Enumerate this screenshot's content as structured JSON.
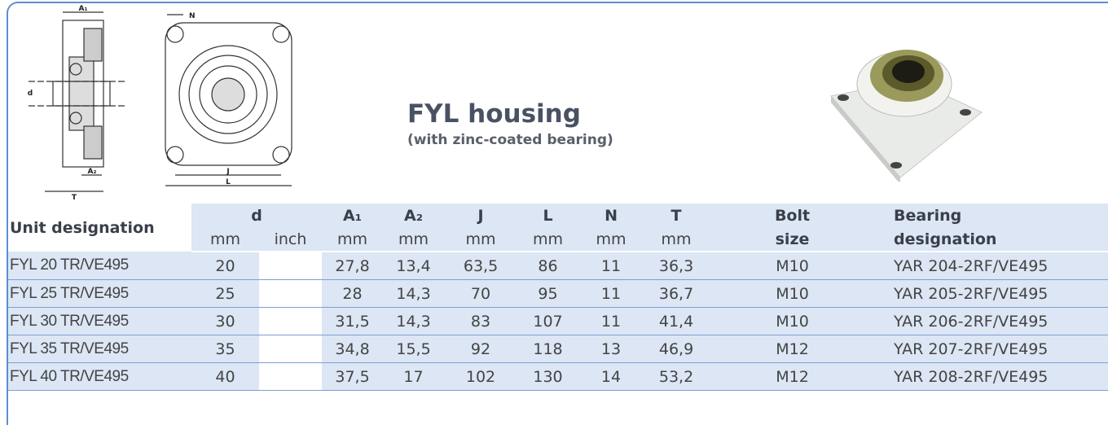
{
  "header": {
    "title": "FYL housing",
    "subtitle": "(with zinc-coated bearing)"
  },
  "diagram": {
    "side_labels": [
      "A₁",
      "d",
      "A₂",
      "T"
    ],
    "front_labels": [
      "N",
      "J",
      "L"
    ]
  },
  "table": {
    "header_top": [
      "Unit designation",
      "d",
      "A₁",
      "A₂",
      "J",
      "L",
      "N",
      "T",
      "Bolt",
      "Bearing"
    ],
    "header_units": [
      "mm",
      "inch",
      "mm",
      "mm",
      "mm",
      "mm",
      "mm",
      "mm",
      "size",
      "designation"
    ],
    "rows": [
      [
        "FYL 20 TR/VE495",
        "20",
        "27,8",
        "13,4",
        "63,5",
        "86",
        "11",
        "36,3",
        "M10",
        "YAR 204-2RF/VE495"
      ],
      [
        "FYL 25 TR/VE495",
        "25",
        "28",
        "14,3",
        "70",
        "95",
        "11",
        "36,7",
        "M10",
        "YAR 205-2RF/VE495"
      ],
      [
        "FYL 30 TR/VE495",
        "30",
        "31,5",
        "14,3",
        "83",
        "107",
        "11",
        "41,4",
        "M10",
        "YAR 206-2RF/VE495"
      ],
      [
        "FYL 35 TR/VE495",
        "35",
        "34,8",
        "15,5",
        "92",
        "118",
        "13",
        "46,9",
        "M12",
        "YAR 207-2RF/VE495"
      ],
      [
        "FYL 40 TR/VE495",
        "40",
        "37,5",
        "17",
        "102",
        "130",
        "14",
        "53,2",
        "M12",
        "YAR 208-2RF/VE495"
      ]
    ]
  }
}
